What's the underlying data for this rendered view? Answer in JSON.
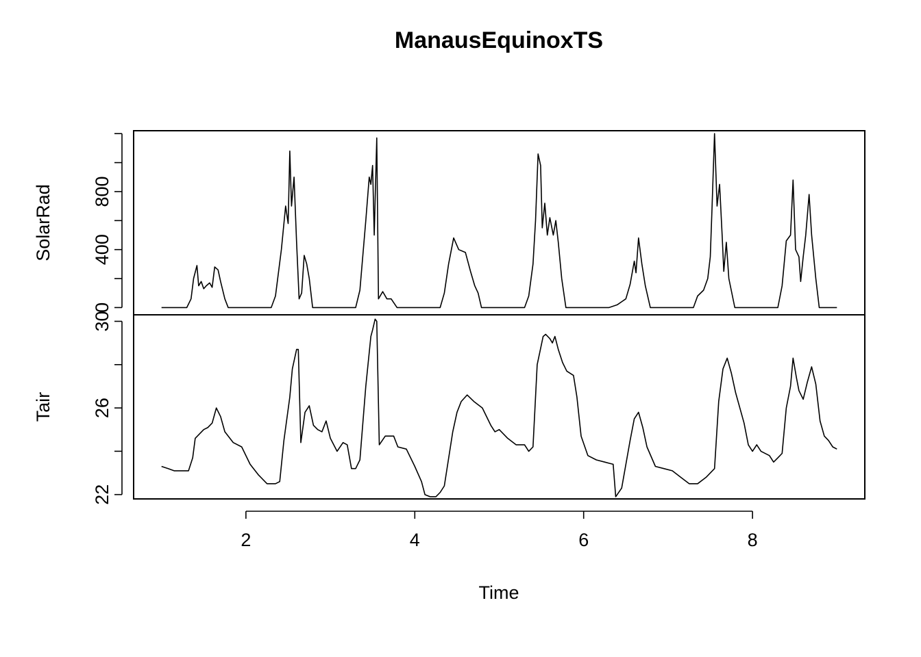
{
  "chart_data": {
    "type": "line",
    "title": "ManausEquinoxTS",
    "xlabel": "Time",
    "xlim": [
      0.67,
      9.33
    ],
    "x_ticks": [
      2,
      4,
      6,
      8
    ],
    "x_tick_labels": [
      "2",
      "4",
      "6",
      "8"
    ],
    "grid": false,
    "legend": "none",
    "panels": [
      {
        "name": "SolarRad",
        "ylabel": "SolarRad",
        "ylim": [
          -50,
          1220
        ],
        "y_ticks": [
          0,
          200,
          400,
          600,
          800,
          1000,
          1200
        ],
        "y_tick_labels": [
          {
            "value": 0,
            "text": "0"
          },
          {
            "value": 400,
            "text": "400"
          },
          {
            "value": 800,
            "text": "800"
          }
        ],
        "points": [
          [
            1.0,
            0
          ],
          [
            1.3,
            0
          ],
          [
            1.35,
            60
          ],
          [
            1.38,
            200
          ],
          [
            1.42,
            290
          ],
          [
            1.44,
            150
          ],
          [
            1.47,
            180
          ],
          [
            1.5,
            130
          ],
          [
            1.53,
            150
          ],
          [
            1.57,
            170
          ],
          [
            1.6,
            140
          ],
          [
            1.63,
            280
          ],
          [
            1.67,
            260
          ],
          [
            1.7,
            180
          ],
          [
            1.75,
            60
          ],
          [
            1.79,
            0
          ],
          [
            2.0,
            0
          ],
          [
            2.3,
            0
          ],
          [
            2.35,
            80
          ],
          [
            2.42,
            400
          ],
          [
            2.47,
            700
          ],
          [
            2.5,
            580
          ],
          [
            2.52,
            1080
          ],
          [
            2.54,
            700
          ],
          [
            2.57,
            900
          ],
          [
            2.6,
            450
          ],
          [
            2.63,
            60
          ],
          [
            2.66,
            100
          ],
          [
            2.69,
            360
          ],
          [
            2.72,
            300
          ],
          [
            2.75,
            200
          ],
          [
            2.79,
            0
          ],
          [
            3.0,
            0
          ],
          [
            3.3,
            0
          ],
          [
            3.35,
            120
          ],
          [
            3.42,
            600
          ],
          [
            3.46,
            900
          ],
          [
            3.48,
            850
          ],
          [
            3.5,
            980
          ],
          [
            3.52,
            500
          ],
          [
            3.55,
            1170
          ],
          [
            3.57,
            60
          ],
          [
            3.62,
            110
          ],
          [
            3.67,
            60
          ],
          [
            3.72,
            60
          ],
          [
            3.79,
            0
          ],
          [
            4.0,
            0
          ],
          [
            4.3,
            0
          ],
          [
            4.35,
            100
          ],
          [
            4.4,
            300
          ],
          [
            4.46,
            480
          ],
          [
            4.52,
            400
          ],
          [
            4.6,
            380
          ],
          [
            4.66,
            250
          ],
          [
            4.71,
            150
          ],
          [
            4.75,
            100
          ],
          [
            4.79,
            0
          ],
          [
            5.0,
            0
          ],
          [
            5.3,
            0
          ],
          [
            5.35,
            80
          ],
          [
            5.4,
            300
          ],
          [
            5.43,
            600
          ],
          [
            5.46,
            1060
          ],
          [
            5.49,
            980
          ],
          [
            5.51,
            550
          ],
          [
            5.54,
            720
          ],
          [
            5.57,
            500
          ],
          [
            5.6,
            620
          ],
          [
            5.64,
            500
          ],
          [
            5.67,
            600
          ],
          [
            5.7,
            450
          ],
          [
            5.74,
            200
          ],
          [
            5.79,
            0
          ],
          [
            6.0,
            0
          ],
          [
            6.3,
            0
          ],
          [
            6.4,
            20
          ],
          [
            6.45,
            40
          ],
          [
            6.5,
            60
          ],
          [
            6.55,
            160
          ],
          [
            6.6,
            320
          ],
          [
            6.62,
            240
          ],
          [
            6.65,
            480
          ],
          [
            6.69,
            300
          ],
          [
            6.73,
            150
          ],
          [
            6.79,
            0
          ],
          [
            7.0,
            0
          ],
          [
            7.3,
            0
          ],
          [
            7.35,
            80
          ],
          [
            7.42,
            120
          ],
          [
            7.47,
            200
          ],
          [
            7.5,
            350
          ],
          [
            7.52,
            680
          ],
          [
            7.55,
            1200
          ],
          [
            7.58,
            700
          ],
          [
            7.61,
            850
          ],
          [
            7.64,
            500
          ],
          [
            7.66,
            250
          ],
          [
            7.69,
            450
          ],
          [
            7.72,
            200
          ],
          [
            7.79,
            0
          ],
          [
            8.0,
            0
          ],
          [
            8.3,
            0
          ],
          [
            8.35,
            150
          ],
          [
            8.4,
            460
          ],
          [
            8.45,
            500
          ],
          [
            8.48,
            880
          ],
          [
            8.51,
            400
          ],
          [
            8.55,
            350
          ],
          [
            8.57,
            180
          ],
          [
            8.6,
            350
          ],
          [
            8.63,
            500
          ],
          [
            8.67,
            780
          ],
          [
            8.7,
            500
          ],
          [
            8.75,
            200
          ],
          [
            8.79,
            0
          ],
          [
            9.0,
            0
          ]
        ]
      },
      {
        "name": "Tair",
        "ylabel": "Tair",
        "ylim": [
          21.8,
          30.3
        ],
        "y_ticks": [
          22,
          24,
          26,
          28,
          30
        ],
        "y_tick_labels": [
          {
            "value": 22,
            "text": "22"
          },
          {
            "value": 26,
            "text": "26"
          },
          {
            "value": 30,
            "text": "30"
          }
        ],
        "points": [
          [
            1.0,
            23.3
          ],
          [
            1.08,
            23.2
          ],
          [
            1.15,
            23.1
          ],
          [
            1.25,
            23.1
          ],
          [
            1.32,
            23.1
          ],
          [
            1.37,
            23.7
          ],
          [
            1.4,
            24.6
          ],
          [
            1.45,
            24.8
          ],
          [
            1.5,
            25.0
          ],
          [
            1.55,
            25.1
          ],
          [
            1.6,
            25.3
          ],
          [
            1.65,
            26.0
          ],
          [
            1.7,
            25.6
          ],
          [
            1.75,
            24.9
          ],
          [
            1.85,
            24.4
          ],
          [
            1.95,
            24.2
          ],
          [
            2.05,
            23.4
          ],
          [
            2.15,
            22.9
          ],
          [
            2.25,
            22.5
          ],
          [
            2.35,
            22.5
          ],
          [
            2.4,
            22.6
          ],
          [
            2.45,
            24.5
          ],
          [
            2.52,
            26.5
          ],
          [
            2.55,
            27.8
          ],
          [
            2.6,
            28.7
          ],
          [
            2.62,
            28.7
          ],
          [
            2.65,
            24.4
          ],
          [
            2.7,
            25.8
          ],
          [
            2.75,
            26.1
          ],
          [
            2.8,
            25.2
          ],
          [
            2.85,
            25.0
          ],
          [
            2.9,
            24.9
          ],
          [
            2.95,
            25.4
          ],
          [
            3.0,
            24.6
          ],
          [
            3.08,
            24.0
          ],
          [
            3.15,
            24.4
          ],
          [
            3.2,
            24.3
          ],
          [
            3.25,
            23.2
          ],
          [
            3.3,
            23.2
          ],
          [
            3.35,
            23.6
          ],
          [
            3.42,
            27.0
          ],
          [
            3.48,
            29.3
          ],
          [
            3.5,
            29.6
          ],
          [
            3.53,
            30.1
          ],
          [
            3.55,
            30.0
          ],
          [
            3.58,
            24.3
          ],
          [
            3.65,
            24.7
          ],
          [
            3.75,
            24.7
          ],
          [
            3.8,
            24.2
          ],
          [
            3.9,
            24.1
          ],
          [
            4.0,
            23.3
          ],
          [
            4.08,
            22.6
          ],
          [
            4.12,
            22.0
          ],
          [
            4.18,
            21.9
          ],
          [
            4.25,
            21.9
          ],
          [
            4.3,
            22.1
          ],
          [
            4.35,
            22.4
          ],
          [
            4.45,
            24.9
          ],
          [
            4.5,
            25.8
          ],
          [
            4.55,
            26.3
          ],
          [
            4.62,
            26.6
          ],
          [
            4.7,
            26.3
          ],
          [
            4.8,
            26.0
          ],
          [
            4.9,
            25.2
          ],
          [
            4.95,
            24.9
          ],
          [
            5.0,
            25.0
          ],
          [
            5.1,
            24.6
          ],
          [
            5.2,
            24.3
          ],
          [
            5.3,
            24.3
          ],
          [
            5.35,
            24.0
          ],
          [
            5.4,
            24.2
          ],
          [
            5.45,
            28.0
          ],
          [
            5.52,
            29.3
          ],
          [
            5.55,
            29.4
          ],
          [
            5.6,
            29.2
          ],
          [
            5.63,
            29.0
          ],
          [
            5.66,
            29.3
          ],
          [
            5.7,
            28.7
          ],
          [
            5.75,
            28.1
          ],
          [
            5.8,
            27.7
          ],
          [
            5.88,
            27.5
          ],
          [
            5.92,
            26.5
          ],
          [
            5.97,
            24.7
          ],
          [
            6.05,
            23.8
          ],
          [
            6.15,
            23.6
          ],
          [
            6.25,
            23.5
          ],
          [
            6.35,
            23.4
          ],
          [
            6.38,
            21.9
          ],
          [
            6.45,
            22.3
          ],
          [
            6.55,
            24.5
          ],
          [
            6.6,
            25.5
          ],
          [
            6.65,
            25.8
          ],
          [
            6.7,
            25.1
          ],
          [
            6.75,
            24.2
          ],
          [
            6.85,
            23.3
          ],
          [
            6.95,
            23.2
          ],
          [
            7.05,
            23.1
          ],
          [
            7.15,
            22.8
          ],
          [
            7.25,
            22.5
          ],
          [
            7.35,
            22.5
          ],
          [
            7.45,
            22.8
          ],
          [
            7.55,
            23.2
          ],
          [
            7.6,
            26.3
          ],
          [
            7.65,
            27.8
          ],
          [
            7.7,
            28.3
          ],
          [
            7.75,
            27.6
          ],
          [
            7.8,
            26.7
          ],
          [
            7.9,
            25.3
          ],
          [
            7.95,
            24.3
          ],
          [
            8.0,
            24.0
          ],
          [
            8.05,
            24.3
          ],
          [
            8.1,
            24.0
          ],
          [
            8.2,
            23.8
          ],
          [
            8.25,
            23.5
          ],
          [
            8.3,
            23.7
          ],
          [
            8.35,
            23.9
          ],
          [
            8.4,
            26.0
          ],
          [
            8.45,
            27.0
          ],
          [
            8.48,
            28.3
          ],
          [
            8.52,
            27.4
          ],
          [
            8.55,
            26.8
          ],
          [
            8.6,
            26.4
          ],
          [
            8.65,
            27.2
          ],
          [
            8.7,
            27.9
          ],
          [
            8.75,
            27.1
          ],
          [
            8.8,
            25.4
          ],
          [
            8.85,
            24.7
          ],
          [
            8.9,
            24.5
          ],
          [
            8.95,
            24.2
          ],
          [
            9.0,
            24.1
          ]
        ]
      }
    ]
  }
}
